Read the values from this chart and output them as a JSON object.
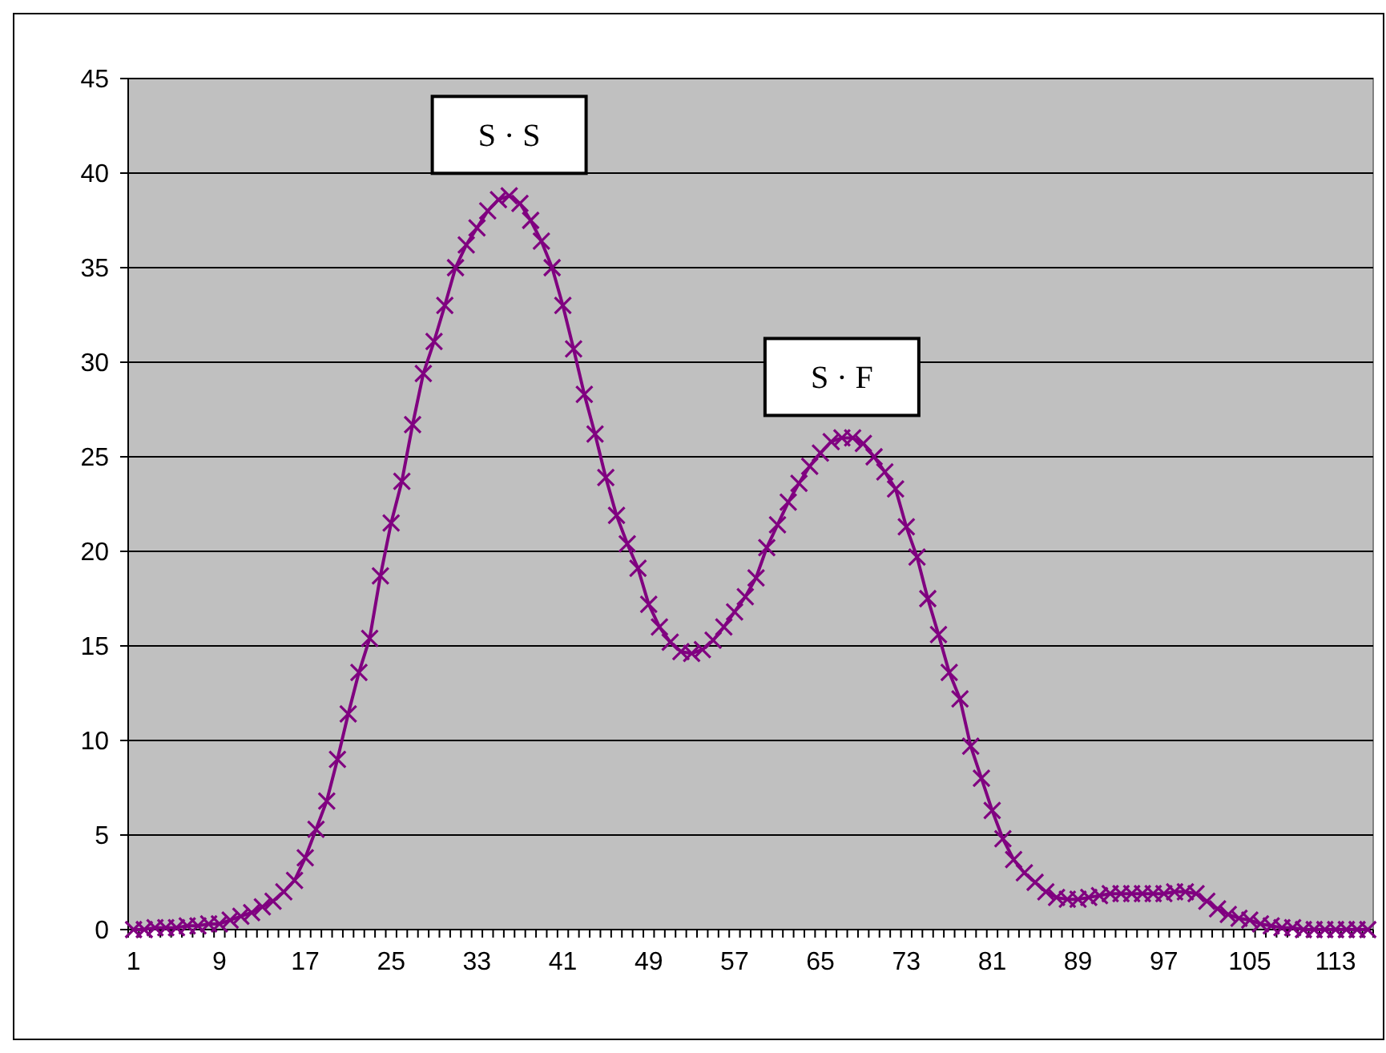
{
  "chart_data": {
    "type": "line",
    "categories": [
      "1",
      null,
      null,
      null,
      null,
      null,
      null,
      null,
      "9",
      null,
      null,
      null,
      null,
      null,
      null,
      null,
      "17",
      null,
      null,
      null,
      null,
      null,
      null,
      null,
      "25",
      null,
      null,
      null,
      null,
      null,
      null,
      null,
      "33",
      null,
      null,
      null,
      null,
      null,
      null,
      null,
      "41",
      null,
      null,
      null,
      null,
      null,
      null,
      null,
      "49",
      null,
      null,
      null,
      null,
      null,
      null,
      null,
      "57",
      null,
      null,
      null,
      null,
      null,
      null,
      null,
      "65",
      null,
      null,
      null,
      null,
      null,
      null,
      null,
      "73",
      null,
      null,
      null,
      null,
      null,
      null,
      null,
      "81",
      null,
      null,
      null,
      null,
      null,
      null,
      null,
      "89",
      null,
      null,
      null,
      null,
      null,
      null,
      null,
      "97",
      null,
      null,
      null,
      null,
      null,
      null,
      null,
      "105",
      null,
      null,
      null,
      null,
      null,
      null,
      null,
      "113",
      null,
      null,
      null
    ],
    "series": [
      {
        "color": "#800080",
        "values": [
          0.0,
          0.0,
          0.1,
          0.1,
          0.1,
          0.2,
          0.2,
          0.3,
          0.3,
          0.5,
          0.7,
          0.9,
          1.2,
          1.5,
          2.0,
          2.6,
          3.8,
          5.3,
          6.8,
          9.0,
          11.4,
          13.6,
          15.4,
          18.7,
          21.5,
          23.7,
          26.7,
          29.4,
          31.1,
          33.0,
          35.0,
          36.2,
          37.1,
          38.0,
          38.6,
          38.8,
          38.4,
          37.5,
          36.4,
          35.0,
          33.0,
          30.7,
          28.3,
          26.2,
          23.9,
          21.9,
          20.4,
          19.1,
          17.2,
          16.0,
          15.2,
          14.7,
          14.6,
          14.8,
          15.3,
          16.0,
          16.8,
          17.6,
          18.6,
          20.2,
          21.4,
          22.6,
          23.6,
          24.5,
          25.2,
          25.8,
          26.0,
          26.0,
          25.7,
          25.0,
          24.2,
          23.3,
          21.3,
          19.7,
          17.5,
          15.6,
          13.6,
          12.2,
          9.7,
          8.0,
          6.3,
          4.8,
          3.7,
          3.0,
          2.5,
          2.0,
          1.7,
          1.6,
          1.6,
          1.7,
          1.8,
          1.9,
          1.9,
          1.9,
          1.9,
          1.9,
          1.9,
          2.0,
          2.0,
          1.9,
          1.5,
          1.1,
          0.8,
          0.6,
          0.5,
          0.3,
          0.2,
          0.1,
          0.1,
          0.0,
          0.0,
          0.0,
          0.0,
          0.0,
          0.0,
          0.0
        ]
      }
    ],
    "ylim": [
      0,
      45
    ],
    "yticks": [
      0,
      5,
      10,
      15,
      20,
      25,
      30,
      35,
      40,
      45
    ],
    "grid": "y",
    "marker": "cross",
    "line_style": "solid",
    "annotations": [
      "S · S",
      "S · F"
    ]
  }
}
